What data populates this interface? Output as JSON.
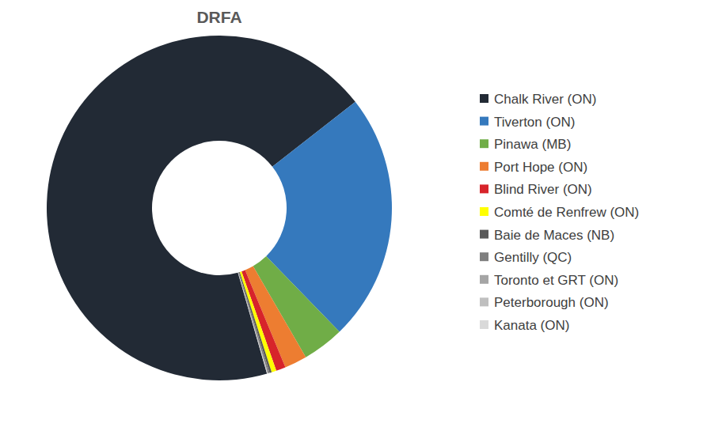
{
  "chart_data": {
    "type": "donut",
    "title": "DRFA",
    "categories": [
      "Chalk River (ON)",
      "Tiverton (ON)",
      "Pinawa (MB)",
      "Port Hope (ON)",
      "Blind River (ON)",
      "Comté de Renfrew (ON)",
      "Baie de Maces (NB)",
      "Gentilly (QC)",
      "Toronto et GRT (ON)",
      "Peterborough (ON)",
      "Kanata (ON)"
    ],
    "values": [
      68.9,
      23.3,
      3.9,
      2.1,
      0.9,
      0.45,
      0.2,
      0.15,
      0.05,
      0.03,
      0.02
    ],
    "colors": [
      "#222a35",
      "#3579bd",
      "#70ad47",
      "#ed7d31",
      "#d7242a",
      "#ffff00",
      "#595959",
      "#7f7f7f",
      "#a5a5a5",
      "#bfbfbf",
      "#d9d9d9"
    ],
    "legend": "right"
  }
}
